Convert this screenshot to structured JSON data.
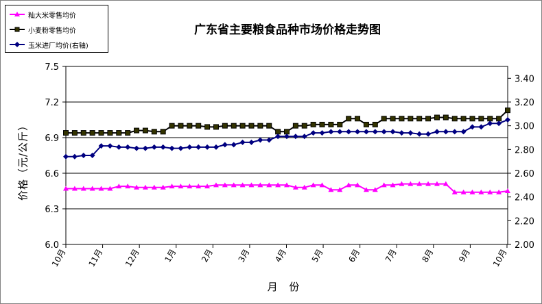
{
  "chart_data": {
    "type": "line",
    "title": "广东省主要粮食品种市场价格走势图",
    "xlabel": "月  份",
    "ylabel": "价格（元/公斤）",
    "x_tick_labels": [
      "10月",
      "11月",
      "12月",
      "1月",
      "2月",
      "3月",
      "4月",
      "5月",
      "6月",
      "7月",
      "8月",
      "9月",
      "10月"
    ],
    "y_left": {
      "ylim": [
        6.0,
        7.5
      ],
      "ticks": [
        "6.0",
        "6.3",
        "6.6",
        "6.9",
        "7.2",
        "7.5"
      ]
    },
    "y_right": {
      "ylim": [
        2.0,
        3.5
      ],
      "ticks": [
        "2.00",
        "2.20",
        "2.40",
        "2.60",
        "2.80",
        "3.00",
        "3.20",
        "3.40"
      ]
    },
    "grid": true,
    "legend_placement": "top-left",
    "series": [
      {
        "name": "籼大米零售均价",
        "axis": "left",
        "color": "#ff00ff",
        "marker": "triangle",
        "values": [
          6.47,
          6.47,
          6.47,
          6.47,
          6.47,
          6.47,
          6.49,
          6.49,
          6.48,
          6.48,
          6.48,
          6.48,
          6.49,
          6.49,
          6.49,
          6.49,
          6.49,
          6.5,
          6.5,
          6.5,
          6.5,
          6.5,
          6.5,
          6.5,
          6.5,
          6.5,
          6.48,
          6.48,
          6.5,
          6.5,
          6.46,
          6.46,
          6.5,
          6.5,
          6.46,
          6.46,
          6.5,
          6.5,
          6.51,
          6.51,
          6.51,
          6.51,
          6.51,
          6.51,
          6.44,
          6.44,
          6.44,
          6.44,
          6.44,
          6.44,
          6.45
        ]
      },
      {
        "name": "小麦粉零售均价",
        "axis": "left",
        "color": "#000000",
        "marker": "square",
        "values": [
          6.94,
          6.94,
          6.94,
          6.94,
          6.94,
          6.94,
          6.94,
          6.94,
          6.96,
          6.96,
          6.95,
          6.95,
          7.0,
          7.0,
          7.0,
          7.0,
          6.99,
          6.99,
          7.0,
          7.0,
          7.0,
          7.0,
          7.0,
          7.0,
          6.95,
          6.95,
          7.0,
          7.0,
          7.01,
          7.01,
          7.01,
          7.01,
          7.06,
          7.06,
          7.01,
          7.01,
          7.06,
          7.06,
          7.06,
          7.06,
          7.06,
          7.06,
          7.07,
          7.07,
          7.06,
          7.06,
          7.06,
          7.06,
          7.06,
          7.06,
          7.13
        ]
      },
      {
        "name": "玉米进厂均价(右轴)",
        "axis": "right",
        "color": "#000080",
        "marker": "diamond",
        "values": [
          2.74,
          2.74,
          2.75,
          2.75,
          2.83,
          2.83,
          2.82,
          2.82,
          2.81,
          2.81,
          2.82,
          2.82,
          2.81,
          2.81,
          2.82,
          2.82,
          2.82,
          2.82,
          2.84,
          2.84,
          2.86,
          2.86,
          2.88,
          2.88,
          2.91,
          2.91,
          2.91,
          2.91,
          2.94,
          2.94,
          2.95,
          2.95,
          2.95,
          2.95,
          2.95,
          2.95,
          2.95,
          2.95,
          2.94,
          2.94,
          2.93,
          2.93,
          2.95,
          2.95,
          2.95,
          2.95,
          2.99,
          2.99,
          3.02,
          3.02,
          3.05
        ]
      }
    ]
  },
  "colors": {
    "axis": "#000000",
    "grid": "#000000",
    "background": "#ffffff"
  }
}
